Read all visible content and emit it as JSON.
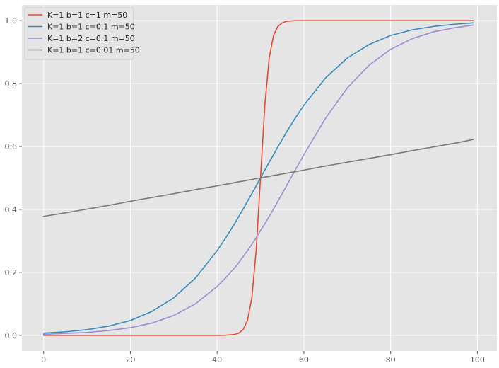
{
  "chart_data": {
    "type": "line",
    "title": "",
    "xlabel": "",
    "ylabel": "",
    "xlim": [
      -5,
      104.5
    ],
    "ylim": [
      -0.05,
      1.05
    ],
    "x_ticks": [
      "0",
      "20",
      "40",
      "60",
      "80",
      "100"
    ],
    "y_ticks": [
      "0.0",
      "0.2",
      "0.4",
      "0.6",
      "0.8",
      "1.0"
    ],
    "grid": true,
    "legend_position": "top-left",
    "x": [
      0,
      5,
      10,
      15,
      20,
      25,
      30,
      35,
      40,
      42,
      44,
      45,
      46,
      47,
      48,
      49,
      50,
      51,
      52,
      53,
      54,
      55,
      56,
      58,
      60,
      65,
      70,
      75,
      80,
      85,
      90,
      95,
      99
    ],
    "series": [
      {
        "name": "K=1 b=1 c=1 m=50",
        "color": "#E24A33",
        "values": [
          0.0,
          0.0,
          0.0,
          0.0,
          0.0,
          0.0,
          0.0,
          0.0,
          0.0,
          0.0003,
          0.0025,
          0.0067,
          0.018,
          0.047,
          0.119,
          0.269,
          0.5,
          0.731,
          0.881,
          0.953,
          0.982,
          0.993,
          0.998,
          1.0,
          1.0,
          1.0,
          1.0,
          1.0,
          1.0,
          1.0,
          1.0,
          1.0,
          1.0
        ]
      },
      {
        "name": "K=1 b=1 c=0.1 m=50",
        "color": "#348ABD",
        "values": [
          0.007,
          0.011,
          0.018,
          0.029,
          0.047,
          0.076,
          0.119,
          0.182,
          0.269,
          0.31,
          0.354,
          0.378,
          0.401,
          0.426,
          0.45,
          0.475,
          0.5,
          0.525,
          0.55,
          0.574,
          0.599,
          0.622,
          0.646,
          0.69,
          0.731,
          0.818,
          0.881,
          0.924,
          0.953,
          0.971,
          0.982,
          0.989,
          0.993
        ]
      },
      {
        "name": "K=1 b=2 c=0.1 m=50",
        "color": "#988ED5",
        "values": [
          0.003,
          0.006,
          0.009,
          0.015,
          0.024,
          0.039,
          0.063,
          0.1,
          0.155,
          0.183,
          0.214,
          0.231,
          0.25,
          0.269,
          0.289,
          0.31,
          0.333,
          0.354,
          0.378,
          0.401,
          0.426,
          0.45,
          0.475,
          0.525,
          0.574,
          0.69,
          0.786,
          0.858,
          0.909,
          0.943,
          0.965,
          0.978,
          0.986
        ]
      },
      {
        "name": "K=1 b=1 c=0.01 m=50",
        "color": "#777777",
        "values": [
          0.378,
          0.389,
          0.401,
          0.413,
          0.426,
          0.438,
          0.45,
          0.463,
          0.475,
          0.48,
          0.485,
          0.488,
          0.49,
          0.493,
          0.495,
          0.498,
          0.5,
          0.503,
          0.505,
          0.508,
          0.51,
          0.513,
          0.515,
          0.52,
          0.525,
          0.538,
          0.55,
          0.562,
          0.574,
          0.587,
          0.599,
          0.611,
          0.622
        ]
      }
    ]
  }
}
